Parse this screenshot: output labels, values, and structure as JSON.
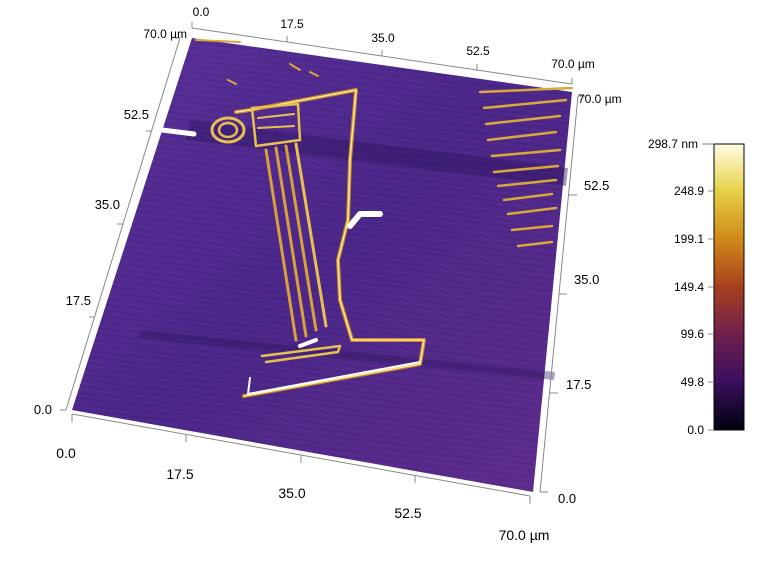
{
  "units": "µm",
  "top_axis_ticks": [
    "0.0",
    "17.5",
    "35.0",
    "52.5",
    "70.0 µm"
  ],
  "left_axis_ticks": [
    "0.0",
    "17.5",
    "35.0",
    "52.5",
    "70.0 µm"
  ],
  "right_axis_ticks": [
    "0.0",
    "17.5",
    "35.0",
    "52.5",
    "70.0 µm"
  ],
  "bottom_axis_ticks": [
    "0.0",
    "17.5",
    "35.0",
    "52.5",
    "70.0 µm"
  ],
  "colorbar": {
    "ticks": [
      "298.7 nm",
      "248.9",
      "199.1",
      "149.4",
      "99.6",
      "49.8",
      "0.0"
    ],
    "colors": [
      "#fffde6",
      "#e8d24a",
      "#d08a1a",
      "#a8401e",
      "#6e1f4e",
      "#3b0f5e",
      "#000010"
    ]
  },
  "surface_colors": {
    "base": "#4a2a8a",
    "ridge": "#e8b43a",
    "highlight": "#ffffff"
  }
}
